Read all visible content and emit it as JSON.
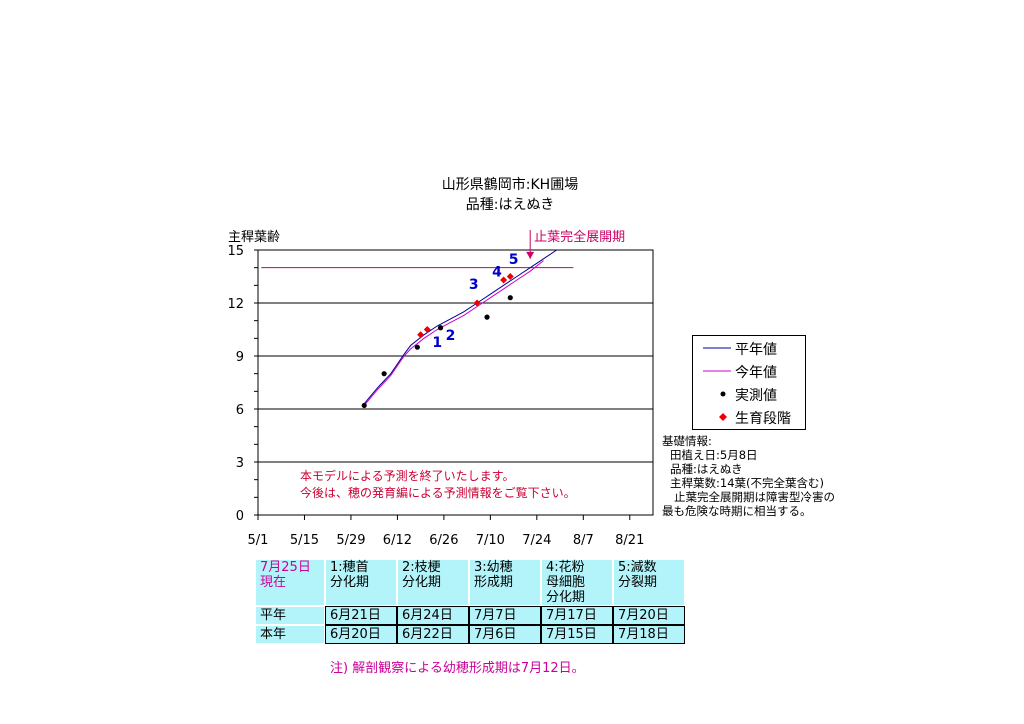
{
  "chart_data": {
    "type": "line",
    "title": "山形県鶴岡市:KH圃場",
    "subtitle": "品種:はえぬき",
    "ylabel": "主稈葉齢",
    "xlabel": "",
    "ylim": [
      0,
      15
    ],
    "yticks": [
      "0",
      "3",
      "6",
      "9",
      "12",
      "15"
    ],
    "xlim": [
      "5/1",
      "8/28"
    ],
    "xticks": [
      "5/1",
      "5/15",
      "5/29",
      "6/12",
      "6/26",
      "7/10",
      "7/24",
      "8/7",
      "8/21"
    ],
    "grid": true,
    "legend": {
      "placement": "right",
      "items": [
        "平年値",
        "今年値",
        "実測値",
        "生育段階"
      ]
    },
    "series": [
      {
        "name": "平年値",
        "color": "#000099",
        "kind": "line",
        "x": [
          "6/2",
          "6/6",
          "6/10",
          "6/14",
          "6/16",
          "6/20",
          "6/24",
          "6/28",
          "7/2",
          "7/6",
          "7/10",
          "7/14",
          "7/18",
          "7/22",
          "7/26",
          "7/30"
        ],
        "y": [
          6.3,
          7.2,
          8.0,
          9.1,
          9.6,
          10.2,
          10.7,
          11.1,
          11.5,
          12.0,
          12.5,
          13.0,
          13.5,
          14.0,
          14.5,
          15.0
        ]
      },
      {
        "name": "今年値",
        "color": "#cc00cc",
        "kind": "line",
        "x": [
          "6/2",
          "6/6",
          "6/10",
          "6/14",
          "6/16",
          "6/20",
          "6/24",
          "6/28",
          "7/2",
          "7/6",
          "7/10",
          "7/14",
          "7/18",
          "7/22",
          "7/26"
        ],
        "y": [
          6.2,
          7.1,
          7.9,
          9.0,
          9.4,
          10.0,
          10.5,
          10.9,
          11.3,
          11.8,
          12.3,
          12.8,
          13.3,
          13.8,
          14.4
        ]
      },
      {
        "name": "実測値",
        "color": "#000000",
        "kind": "scatter",
        "x": [
          "6/2",
          "6/8",
          "6/18",
          "6/25",
          "7/9",
          "7/16"
        ],
        "y": [
          6.2,
          8.0,
          9.5,
          10.6,
          11.2,
          12.3
        ]
      },
      {
        "name": "生育段階",
        "color": "#ee0000",
        "kind": "scatter",
        "x": [
          "6/19",
          "6/21",
          "7/6",
          "7/14",
          "7/16"
        ],
        "y": [
          10.2,
          10.5,
          12.0,
          13.3,
          13.5
        ]
      }
    ],
    "reference_line": {
      "y": 14,
      "x": [
        "5/2",
        "8/4"
      ],
      "color": "#cc0066"
    },
    "annotations": {
      "stage_numbers": [
        {
          "text": "1",
          "x": "6/24",
          "y": 9.5
        },
        {
          "text": "2",
          "x": "6/28",
          "y": 9.9
        },
        {
          "text": "3",
          "x": "7/5",
          "y": 12.8
        },
        {
          "text": "4",
          "x": "7/12",
          "y": 13.5
        },
        {
          "text": "5",
          "x": "7/17",
          "y": 14.2
        }
      ],
      "stop_leaf_label": "止葉完全展開期",
      "stop_leaf_x": "7/22"
    }
  },
  "notice": {
    "line1": "本モデルによる予測を終了いたします。",
    "line2": "今後は、穂の発育編による予測情報をご覧下さい。"
  },
  "basic_info": {
    "heading": "基礎情報:",
    "planting": "田植え日:5月8日",
    "variety": "品種:はえぬき",
    "leaf_count": "主稈葉数:14葉(不完全葉含む)",
    "note1": "止葉完全展開期は障害型冷害の",
    "note2": "最も危険な時期に相当する。"
  },
  "stage_table": {
    "date_line1": "7月25日",
    "date_line2": "現在",
    "stages": [
      {
        "l1": "1:穂首",
        "l2": "分化期",
        "l3": ""
      },
      {
        "l1": "2:枝梗",
        "l2": "分化期",
        "l3": ""
      },
      {
        "l1": "3:幼穂",
        "l2": "形成期",
        "l3": ""
      },
      {
        "l1": "4:花粉",
        "l2": "母細胞",
        "l3": "分化期"
      },
      {
        "l1": "5:減数",
        "l2": "分裂期",
        "l3": ""
      }
    ],
    "rows": [
      {
        "label": "平年",
        "values": [
          "6月21日",
          "6月24日",
          "7月7日",
          "7月17日",
          "7月20日"
        ]
      },
      {
        "label": "本年",
        "values": [
          "6月20日",
          "6月22日",
          "7月6日",
          "7月15日",
          "7月18日"
        ]
      }
    ]
  },
  "footnote": "注) 解剖観察による幼穂形成期は7月12日。"
}
